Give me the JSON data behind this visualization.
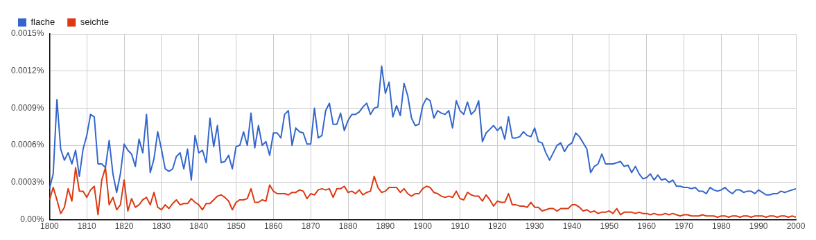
{
  "chart_data": {
    "type": "line",
    "legend": "top left",
    "grid": true,
    "marker": "none",
    "line_style": "solid",
    "xlim": [
      1800,
      2000
    ],
    "xticks": [
      1800,
      1810,
      1820,
      1830,
      1840,
      1850,
      1860,
      1870,
      1880,
      1890,
      1900,
      1910,
      1920,
      1930,
      1940,
      1950,
      1960,
      1970,
      1980,
      1990,
      2000
    ],
    "ylim": [
      0,
      0.0015
    ],
    "yticks": [
      {
        "value": 0,
        "label": "0.00%"
      },
      {
        "value": 0.0003,
        "label": "0.0003%"
      },
      {
        "value": 0.0006,
        "label": "0.0006%"
      },
      {
        "value": 0.0009,
        "label": "0.0009%"
      },
      {
        "value": 0.0012,
        "label": "0.0012%"
      },
      {
        "value": 0.0015,
        "label": "0.0015%"
      }
    ],
    "x": [
      1800,
      1801,
      1802,
      1803,
      1804,
      1805,
      1806,
      1807,
      1808,
      1809,
      1810,
      1811,
      1812,
      1813,
      1814,
      1815,
      1816,
      1817,
      1818,
      1819,
      1820,
      1821,
      1822,
      1823,
      1824,
      1825,
      1826,
      1827,
      1828,
      1829,
      1830,
      1831,
      1832,
      1833,
      1834,
      1835,
      1836,
      1837,
      1838,
      1839,
      1840,
      1841,
      1842,
      1843,
      1844,
      1845,
      1846,
      1847,
      1848,
      1849,
      1850,
      1851,
      1852,
      1853,
      1854,
      1855,
      1856,
      1857,
      1858,
      1859,
      1860,
      1861,
      1862,
      1863,
      1864,
      1865,
      1866,
      1867,
      1868,
      1869,
      1870,
      1871,
      1872,
      1873,
      1874,
      1875,
      1876,
      1877,
      1878,
      1879,
      1880,
      1881,
      1882,
      1883,
      1884,
      1885,
      1886,
      1887,
      1888,
      1889,
      1890,
      1891,
      1892,
      1893,
      1894,
      1895,
      1896,
      1897,
      1898,
      1899,
      1900,
      1901,
      1902,
      1903,
      1904,
      1905,
      1906,
      1907,
      1908,
      1909,
      1910,
      1911,
      1912,
      1913,
      1914,
      1915,
      1916,
      1917,
      1918,
      1919,
      1920,
      1921,
      1922,
      1923,
      1924,
      1925,
      1926,
      1927,
      1928,
      1929,
      1930,
      1931,
      1932,
      1933,
      1934,
      1935,
      1936,
      1937,
      1938,
      1939,
      1940,
      1941,
      1942,
      1943,
      1944,
      1945,
      1946,
      1947,
      1948,
      1949,
      1950,
      1951,
      1952,
      1953,
      1954,
      1955,
      1956,
      1957,
      1958,
      1959,
      1960,
      1961,
      1962,
      1963,
      1964,
      1965,
      1966,
      1967,
      1968,
      1969,
      1970,
      1971,
      1972,
      1973,
      1974,
      1975,
      1976,
      1977,
      1978,
      1979,
      1980,
      1981,
      1982,
      1983,
      1984,
      1985,
      1986,
      1987,
      1988,
      1989,
      1990,
      1991,
      1992,
      1993,
      1994,
      1995,
      1996,
      1997,
      1998,
      1999,
      2000
    ],
    "series": [
      {
        "name": "flache",
        "color": "#3366cc",
        "values": [
          0.00025,
          0.00037,
          0.00097,
          0.00057,
          0.00048,
          0.00054,
          0.00045,
          0.00056,
          0.00035,
          0.00057,
          0.00068,
          0.00085,
          0.00083,
          0.00045,
          0.00045,
          0.00042,
          0.00064,
          0.00037,
          0.00022,
          0.00037,
          0.00061,
          0.00056,
          0.00053,
          0.00043,
          0.00065,
          0.00054,
          0.00085,
          0.00038,
          0.00049,
          0.00071,
          0.00057,
          0.00041,
          0.00039,
          0.00041,
          0.00051,
          0.00054,
          0.00041,
          0.00057,
          0.00032,
          0.00068,
          0.00054,
          0.00056,
          0.00046,
          0.00082,
          0.00059,
          0.00076,
          0.00046,
          0.00047,
          0.00052,
          0.00041,
          0.00059,
          0.0006,
          0.00071,
          0.0006,
          0.00086,
          0.00058,
          0.00076,
          0.0006,
          0.00063,
          0.00052,
          0.0007,
          0.0007,
          0.00066,
          0.00085,
          0.00088,
          0.0006,
          0.00074,
          0.00071,
          0.0007,
          0.00061,
          0.00061,
          0.0009,
          0.00066,
          0.00068,
          0.00088,
          0.00094,
          0.00077,
          0.00077,
          0.00086,
          0.00072,
          0.0008,
          0.00085,
          0.00085,
          0.00087,
          0.00091,
          0.00094,
          0.00085,
          0.0009,
          0.00091,
          0.00124,
          0.00102,
          0.00111,
          0.00083,
          0.00092,
          0.00084,
          0.0011,
          0.001,
          0.00082,
          0.00076,
          0.00077,
          0.00092,
          0.00098,
          0.00096,
          0.00082,
          0.00088,
          0.00086,
          0.00085,
          0.00088,
          0.00074,
          0.00096,
          0.00088,
          0.00085,
          0.00095,
          0.00085,
          0.00088,
          0.00096,
          0.00063,
          0.0007,
          0.00073,
          0.00076,
          0.00072,
          0.00075,
          0.00065,
          0.00083,
          0.00066,
          0.00066,
          0.00067,
          0.00071,
          0.00068,
          0.00067,
          0.00074,
          0.00063,
          0.00062,
          0.00054,
          0.00048,
          0.00054,
          0.0006,
          0.00062,
          0.00055,
          0.0006,
          0.00062,
          0.0007,
          0.00067,
          0.00062,
          0.00057,
          0.00038,
          0.00043,
          0.00045,
          0.00053,
          0.00045,
          0.00045,
          0.00045,
          0.00046,
          0.00047,
          0.00043,
          0.00044,
          0.00038,
          0.00043,
          0.00037,
          0.00033,
          0.00034,
          0.00037,
          0.00032,
          0.00036,
          0.00032,
          0.00033,
          0.0003,
          0.00032,
          0.00027,
          0.00027,
          0.00026,
          0.00026,
          0.00025,
          0.00026,
          0.00023,
          0.00023,
          0.00021,
          0.00026,
          0.00024,
          0.00023,
          0.00024,
          0.00026,
          0.00023,
          0.00021,
          0.00024,
          0.00024,
          0.00022,
          0.00023,
          0.00023,
          0.00021,
          0.00024,
          0.00022,
          0.0002,
          0.0002,
          0.00021,
          0.00021,
          0.00023,
          0.00022,
          0.00023,
          0.00024,
          0.00025
        ]
      },
      {
        "name": "seichte",
        "color": "#dc3912",
        "values": [
          0.00016,
          0.00026,
          0.00016,
          5e-05,
          0.0001,
          0.00025,
          0.00015,
          0.00042,
          0.00023,
          0.00023,
          0.00018,
          0.00024,
          0.00027,
          4e-05,
          0.00032,
          0.00042,
          0.00012,
          0.00018,
          8e-05,
          0.00012,
          0.00032,
          7e-05,
          0.00017,
          0.0001,
          0.00012,
          0.00016,
          0.00018,
          0.00012,
          0.00022,
          0.0001,
          8e-05,
          0.00012,
          9e-05,
          0.00013,
          0.00016,
          0.00012,
          0.00013,
          0.00013,
          0.00017,
          0.00014,
          0.00012,
          8e-05,
          0.00013,
          0.00013,
          0.00016,
          0.00019,
          0.0002,
          0.00018,
          0.00015,
          8e-05,
          0.00014,
          0.00016,
          0.00016,
          0.00017,
          0.00025,
          0.00014,
          0.00014,
          0.00016,
          0.00015,
          0.00028,
          0.00023,
          0.00021,
          0.00021,
          0.00021,
          0.0002,
          0.00022,
          0.00022,
          0.00024,
          0.00023,
          0.00017,
          0.00021,
          0.0002,
          0.00024,
          0.00025,
          0.00024,
          0.00025,
          0.00018,
          0.00025,
          0.00025,
          0.00027,
          0.00022,
          0.00023,
          0.00021,
          0.00024,
          0.0002,
          0.00022,
          0.00023,
          0.00035,
          0.00026,
          0.00022,
          0.00023,
          0.00026,
          0.00026,
          0.00026,
          0.00022,
          0.00025,
          0.00021,
          0.00019,
          0.00021,
          0.00021,
          0.00025,
          0.00027,
          0.00026,
          0.00022,
          0.00021,
          0.00019,
          0.00018,
          0.00019,
          0.00018,
          0.00023,
          0.00017,
          0.00016,
          0.00022,
          0.0002,
          0.00019,
          0.00019,
          0.00015,
          0.0002,
          0.00016,
          0.00011,
          0.00015,
          0.00014,
          0.00014,
          0.00021,
          0.00012,
          0.00012,
          0.00011,
          0.00011,
          0.0001,
          0.00014,
          0.0001,
          0.0001,
          7e-05,
          8e-05,
          9e-05,
          9e-05,
          7e-05,
          9e-05,
          9e-05,
          9e-05,
          0.00012,
          0.00012,
          0.0001,
          7e-05,
          8e-05,
          6e-05,
          7e-05,
          5e-05,
          6e-05,
          6e-05,
          7e-05,
          5e-05,
          9e-05,
          4e-05,
          6e-05,
          6e-05,
          6e-05,
          5e-05,
          6e-05,
          5e-05,
          5e-05,
          4e-05,
          5e-05,
          4e-05,
          4e-05,
          5e-05,
          4e-05,
          5e-05,
          4e-05,
          3e-05,
          4e-05,
          4e-05,
          3e-05,
          3e-05,
          3e-05,
          4e-05,
          3e-05,
          3e-05,
          3e-05,
          2e-05,
          3e-05,
          3e-05,
          2e-05,
          3e-05,
          3e-05,
          2e-05,
          3e-05,
          3e-05,
          2e-05,
          3e-05,
          3e-05,
          3e-05,
          2e-05,
          3e-05,
          3e-05,
          2e-05,
          3e-05,
          3e-05,
          2e-05,
          3e-05,
          2e-05
        ]
      }
    ]
  }
}
